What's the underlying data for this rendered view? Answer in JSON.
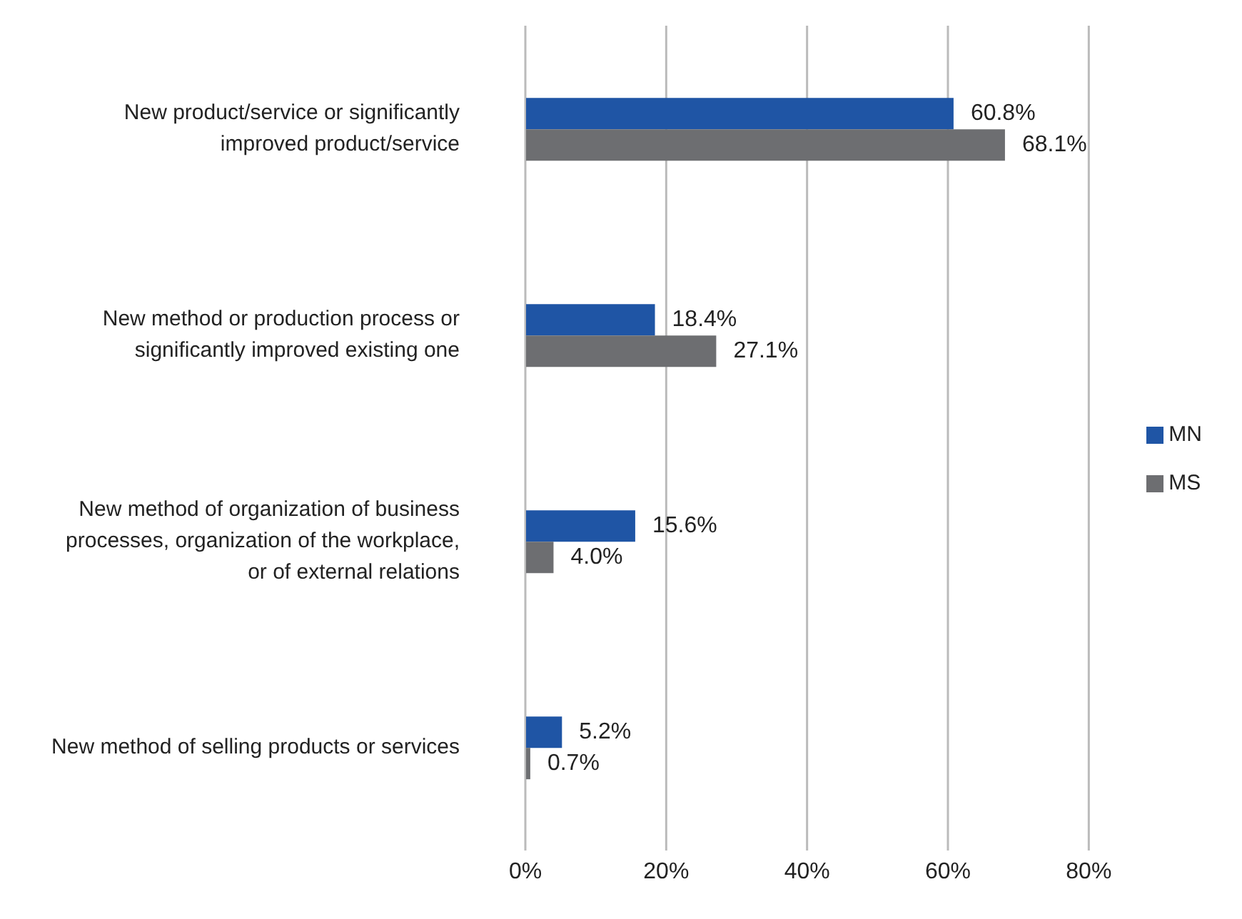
{
  "chart_data": {
    "type": "bar",
    "orientation": "horizontal",
    "categories": [
      "New product/service or significantly improved product/service",
      "New method or production process or significantly improved existing one",
      "New method of organization of business processes, organization of the workplace, or of external relations",
      "New method of selling products or services"
    ],
    "series": [
      {
        "name": "MN",
        "color": "#1f55a5",
        "values": [
          60.8,
          18.4,
          15.6,
          5.2
        ],
        "value_labels": [
          "60.8%",
          "18.4%",
          "15.6%",
          "5.2%"
        ]
      },
      {
        "name": "MS",
        "color": "#6d6e71",
        "values": [
          68.1,
          27.1,
          4.0,
          0.7
        ],
        "value_labels": [
          "68.1%",
          "27.1%",
          "4.0%",
          "0.7%"
        ]
      }
    ],
    "xlim": [
      0,
      80
    ],
    "xticks": [
      {
        "value": 0,
        "label": "0%"
      },
      {
        "value": 20,
        "label": "20%"
      },
      {
        "value": 40,
        "label": "40%"
      },
      {
        "value": 60,
        "label": "60%"
      },
      {
        "value": 80,
        "label": "80%"
      }
    ],
    "grid": "x",
    "legend": "right"
  }
}
